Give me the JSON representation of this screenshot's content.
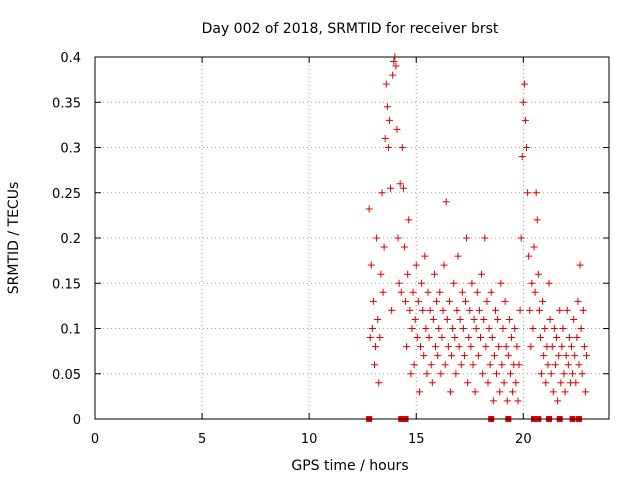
{
  "chart_data": {
    "type": "scatter",
    "title": "Day 002 of 2018, SRMTID for receiver brst",
    "xlabel": "GPS time / hours",
    "ylabel": "SRMTID / TECUs",
    "xlim": [
      0,
      24
    ],
    "ylim": [
      0,
      0.4
    ],
    "xticks": [
      0,
      5,
      10,
      15,
      20
    ],
    "xtick_labels": [
      "0",
      "5",
      "10",
      "15",
      "20"
    ],
    "yticks": [
      0,
      0.05,
      0.1,
      0.15,
      0.2,
      0.25,
      0.3,
      0.35,
      0.4
    ],
    "ytick_labels": [
      "0",
      "0.05",
      "0.1",
      "0.15",
      "0.2",
      "0.25",
      "0.3",
      "0.35",
      "0.4"
    ],
    "grid": true,
    "marker": "+",
    "color": "#e00000",
    "series": [
      {
        "name": "SRMTID",
        "points": [
          [
            12.8,
            0.232
          ],
          [
            12.85,
            0.09
          ],
          [
            12.9,
            0.17
          ],
          [
            12.95,
            0.1
          ],
          [
            13.0,
            0.13
          ],
          [
            13.05,
            0.06
          ],
          [
            13.1,
            0.08
          ],
          [
            13.15,
            0.2
          ],
          [
            13.2,
            0.11
          ],
          [
            13.25,
            0.04
          ],
          [
            13.3,
            0.09
          ],
          [
            13.35,
            0.16
          ],
          [
            13.4,
            0.25
          ],
          [
            13.45,
            0.14
          ],
          [
            13.5,
            0.19
          ],
          [
            13.55,
            0.31
          ],
          [
            13.6,
            0.37
          ],
          [
            13.65,
            0.345
          ],
          [
            13.7,
            0.3
          ],
          [
            13.75,
            0.33
          ],
          [
            13.8,
            0.255
          ],
          [
            13.85,
            0.12
          ],
          [
            13.9,
            0.38
          ],
          [
            13.95,
            0.395
          ],
          [
            14.0,
            0.4
          ],
          [
            14.05,
            0.39
          ],
          [
            14.1,
            0.32
          ],
          [
            14.15,
            0.2
          ],
          [
            14.2,
            0.15
          ],
          [
            14.25,
            0.26
          ],
          [
            14.3,
            0.14
          ],
          [
            14.35,
            0.3
          ],
          [
            14.4,
            0.255
          ],
          [
            14.45,
            0.19
          ],
          [
            14.5,
            0.13
          ],
          [
            14.55,
            0.08
          ],
          [
            14.6,
            0.16
          ],
          [
            14.65,
            0.22
          ],
          [
            14.7,
            0.12
          ],
          [
            14.75,
            0.05
          ],
          [
            14.8,
            0.1
          ],
          [
            14.85,
            0.14
          ],
          [
            14.9,
            0.06
          ],
          [
            14.95,
            0.11
          ],
          [
            15.0,
            0.17
          ],
          [
            15.05,
            0.09
          ],
          [
            15.1,
            0.13
          ],
          [
            15.15,
            0.03
          ],
          [
            15.2,
            0.08
          ],
          [
            15.25,
            0.15
          ],
          [
            15.3,
            0.12
          ],
          [
            15.35,
            0.07
          ],
          [
            15.4,
            0.18
          ],
          [
            15.45,
            0.1
          ],
          [
            15.5,
            0.05
          ],
          [
            15.55,
            0.14
          ],
          [
            15.6,
            0.09
          ],
          [
            15.65,
            0.12
          ],
          [
            15.7,
            0.06
          ],
          [
            15.75,
            0.04
          ],
          [
            15.8,
            0.11
          ],
          [
            15.85,
            0.16
          ],
          [
            15.9,
            0.08
          ],
          [
            15.95,
            0.13
          ],
          [
            16.0,
            0.07
          ],
          [
            16.05,
            0.1
          ],
          [
            16.1,
            0.14
          ],
          [
            16.15,
            0.05
          ],
          [
            16.2,
            0.09
          ],
          [
            16.25,
            0.12
          ],
          [
            16.3,
            0.17
          ],
          [
            16.35,
            0.06
          ],
          [
            16.4,
            0.24
          ],
          [
            16.45,
            0.11
          ],
          [
            16.5,
            0.08
          ],
          [
            16.55,
            0.13
          ],
          [
            16.6,
            0.03
          ],
          [
            16.65,
            0.07
          ],
          [
            16.7,
            0.1
          ],
          [
            16.75,
            0.15
          ],
          [
            16.8,
            0.09
          ],
          [
            16.85,
            0.05
          ],
          [
            16.9,
            0.12
          ],
          [
            16.95,
            0.18
          ],
          [
            17.0,
            0.08
          ],
          [
            17.05,
            0.11
          ],
          [
            17.1,
            0.06
          ],
          [
            17.15,
            0.14
          ],
          [
            17.2,
            0.1
          ],
          [
            17.25,
            0.07
          ],
          [
            17.3,
            0.13
          ],
          [
            17.35,
            0.2
          ],
          [
            17.4,
            0.04
          ],
          [
            17.45,
            0.09
          ],
          [
            17.5,
            0.12
          ],
          [
            17.55,
            0.08
          ],
          [
            17.6,
            0.15
          ],
          [
            17.65,
            0.06
          ],
          [
            17.7,
            0.11
          ],
          [
            17.75,
            0.03
          ],
          [
            17.8,
            0.1
          ],
          [
            17.85,
            0.14
          ],
          [
            17.9,
            0.07
          ],
          [
            17.95,
            0.12
          ],
          [
            18.0,
            0.09
          ],
          [
            18.05,
            0.16
          ],
          [
            18.1,
            0.05
          ],
          [
            18.15,
            0.11
          ],
          [
            18.2,
            0.2
          ],
          [
            18.25,
            0.08
          ],
          [
            18.3,
            0.13
          ],
          [
            18.35,
            0.04
          ],
          [
            18.4,
            0.1
          ],
          [
            18.45,
            0.06
          ],
          [
            18.5,
            0.14
          ],
          [
            18.55,
            0.09
          ],
          [
            18.6,
            0.02
          ],
          [
            18.65,
            0.07
          ],
          [
            18.7,
            0.12
          ],
          [
            18.75,
            0.05
          ],
          [
            18.8,
            0.11
          ],
          [
            18.85,
            0.08
          ],
          [
            18.9,
            0.03
          ],
          [
            18.95,
            0.15
          ],
          [
            19.0,
            0.06
          ],
          [
            19.05,
            0.1
          ],
          [
            19.1,
            0.04
          ],
          [
            19.15,
            0.13
          ],
          [
            19.2,
            0.08
          ],
          [
            19.25,
            0.02
          ],
          [
            19.3,
            0.07
          ],
          [
            19.35,
            0.11
          ],
          [
            19.4,
            0.05
          ],
          [
            19.45,
            0.09
          ],
          [
            19.5,
            0.03
          ],
          [
            19.55,
            0.06
          ],
          [
            19.6,
            0.1
          ],
          [
            19.65,
            0.04
          ],
          [
            19.7,
            0.08
          ],
          [
            19.75,
            0.02
          ],
          [
            19.8,
            0.06
          ],
          [
            19.85,
            0.12
          ],
          [
            19.9,
            0.2
          ],
          [
            19.95,
            0.29
          ],
          [
            20.0,
            0.35
          ],
          [
            20.05,
            0.37
          ],
          [
            20.1,
            0.33
          ],
          [
            20.15,
            0.3
          ],
          [
            20.2,
            0.25
          ],
          [
            20.25,
            0.18
          ],
          [
            20.3,
            0.12
          ],
          [
            20.35,
            0.08
          ],
          [
            20.4,
            0.15
          ],
          [
            20.45,
            0.1
          ],
          [
            20.5,
            0.19
          ],
          [
            20.55,
            0.14
          ],
          [
            20.6,
            0.25
          ],
          [
            20.65,
            0.22
          ],
          [
            20.7,
            0.16
          ],
          [
            20.75,
            0.12
          ],
          [
            20.8,
            0.09
          ],
          [
            20.85,
            0.05
          ],
          [
            20.9,
            0.13
          ],
          [
            20.95,
            0.07
          ],
          [
            21.0,
            0.1
          ],
          [
            21.05,
            0.04
          ],
          [
            21.1,
            0.08
          ],
          [
            21.15,
            0.06
          ],
          [
            21.2,
            0.15
          ],
          [
            21.25,
            0.11
          ],
          [
            21.3,
            0.05
          ],
          [
            21.35,
            0.08
          ],
          [
            21.4,
            0.03
          ],
          [
            21.45,
            0.1
          ],
          [
            21.5,
            0.06
          ],
          [
            21.55,
            0.09
          ],
          [
            21.6,
            0.02
          ],
          [
            21.65,
            0.07
          ],
          [
            21.7,
            0.12
          ],
          [
            21.75,
            0.04
          ],
          [
            21.8,
            0.08
          ],
          [
            21.85,
            0.1
          ],
          [
            21.9,
            0.05
          ],
          [
            21.95,
            0.03
          ],
          [
            22.0,
            0.07
          ],
          [
            22.05,
            0.12
          ],
          [
            22.1,
            0.06
          ],
          [
            22.15,
            0.09
          ],
          [
            22.2,
            0.04
          ],
          [
            22.25,
            0.08
          ],
          [
            22.3,
            0.05
          ],
          [
            22.35,
            0.11
          ],
          [
            22.4,
            0.07
          ],
          [
            22.45,
            0.04
          ],
          [
            22.5,
            0.09
          ],
          [
            22.55,
            0.13
          ],
          [
            22.6,
            0.06
          ],
          [
            22.65,
            0.17
          ],
          [
            22.7,
            0.1
          ],
          [
            22.75,
            0.05
          ],
          [
            22.8,
            0.12
          ],
          [
            22.85,
            0.08
          ],
          [
            22.9,
            0.03
          ],
          [
            22.95,
            0.07
          ]
        ],
        "zero_points": [
          12.8,
          14.3,
          14.5,
          18.5,
          19.3,
          20.5,
          20.7,
          21.2,
          21.7,
          22.3,
          22.6
        ]
      }
    ]
  }
}
